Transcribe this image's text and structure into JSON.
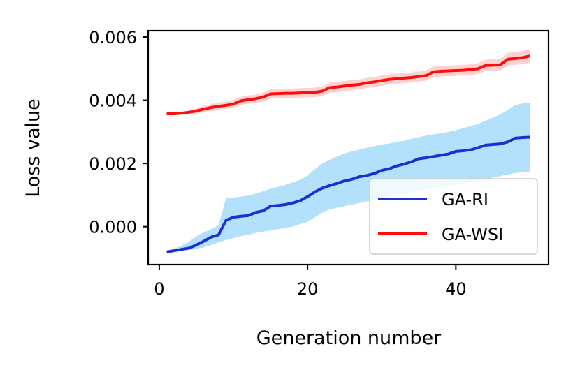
{
  "chart_data": {
    "type": "line",
    "title": "",
    "xlabel": "Generation number",
    "ylabel": "Loss value",
    "xlim": [
      -1.5,
      52.5
    ],
    "ylim": [
      -0.0012,
      0.0062
    ],
    "xticks": [
      0,
      20,
      40
    ],
    "xtick_labels": [
      "0",
      "20",
      "40"
    ],
    "yticks": [
      0.0,
      0.002,
      0.004,
      0.006
    ],
    "ytick_labels": [
      "0.000",
      "0.002",
      "0.004",
      "0.006"
    ],
    "legend_position": "lower-right",
    "x": [
      1,
      2,
      3,
      4,
      5,
      6,
      7,
      8,
      9,
      10,
      11,
      12,
      13,
      14,
      15,
      16,
      17,
      18,
      19,
      20,
      21,
      22,
      23,
      24,
      25,
      26,
      27,
      28,
      29,
      30,
      31,
      32,
      33,
      34,
      35,
      36,
      37,
      38,
      39,
      40,
      41,
      42,
      43,
      44,
      45,
      46,
      47,
      48,
      49,
      50
    ],
    "series": [
      {
        "name": "GA-RI",
        "color": "#1a2fd6",
        "band_color": "#b3e0fa",
        "values": [
          -0.0008,
          -0.00076,
          -0.00072,
          -0.00068,
          -0.00058,
          -0.00046,
          -0.00033,
          -0.00026,
          0.0002,
          0.0003,
          0.00033,
          0.00035,
          0.00045,
          0.0005,
          0.00065,
          0.00067,
          0.0007,
          0.00075,
          0.00082,
          0.00095,
          0.0011,
          0.00122,
          0.0013,
          0.00137,
          0.00145,
          0.0015,
          0.00158,
          0.00162,
          0.00168,
          0.00178,
          0.00183,
          0.00192,
          0.00198,
          0.00205,
          0.00215,
          0.00218,
          0.00222,
          0.00226,
          0.0023,
          0.00238,
          0.0024,
          0.00243,
          0.0025,
          0.00258,
          0.0026,
          0.00262,
          0.00268,
          0.0028,
          0.00282,
          0.00283
        ],
        "lower": [
          -0.0008,
          -0.00078,
          -0.00076,
          -0.00074,
          -0.0007,
          -0.00066,
          -0.00058,
          -0.0005,
          -0.00042,
          -0.00036,
          -0.0003,
          -0.00026,
          -0.0002,
          -0.00016,
          -0.00012,
          -8e-05,
          -4e-05,
          0.0,
          8e-05,
          0.00015,
          0.0003,
          0.00045,
          0.00055,
          0.0006,
          0.00065,
          0.0007,
          0.00075,
          0.0008,
          0.00085,
          0.0009,
          0.00095,
          0.001,
          0.00105,
          0.0011,
          0.00115,
          0.00118,
          0.00122,
          0.00125,
          0.00128,
          0.00132,
          0.00136,
          0.0014,
          0.00145,
          0.0015,
          0.00155,
          0.0016,
          0.00165,
          0.0017,
          0.00172,
          0.00175
        ],
        "upper": [
          -0.0008,
          -0.0007,
          -0.0006,
          -0.00048,
          -0.0003,
          -0.00018,
          -8e-05,
          5e-05,
          0.0009,
          0.00092,
          0.00095,
          0.00098,
          0.00105,
          0.00112,
          0.0012,
          0.00126,
          0.00132,
          0.0014,
          0.00148,
          0.00162,
          0.00182,
          0.002,
          0.00212,
          0.00222,
          0.00232,
          0.00238,
          0.00244,
          0.0025,
          0.00255,
          0.0026,
          0.00263,
          0.00268,
          0.00272,
          0.00278,
          0.00283,
          0.00288,
          0.00292,
          0.00296,
          0.003,
          0.00305,
          0.00312,
          0.00318,
          0.00325,
          0.00335,
          0.00345,
          0.00355,
          0.0037,
          0.00385,
          0.0039,
          0.00392
        ]
      },
      {
        "name": "GA-WSI",
        "color": "#ff0d0d",
        "band_color": "#ffd1d1",
        "values": [
          0.00357,
          0.00357,
          0.00359,
          0.00362,
          0.00366,
          0.00372,
          0.00377,
          0.00381,
          0.00384,
          0.00388,
          0.00398,
          0.00402,
          0.00405,
          0.0041,
          0.0042,
          0.00421,
          0.00422,
          0.00422,
          0.00423,
          0.00424,
          0.00425,
          0.00429,
          0.0044,
          0.00442,
          0.00445,
          0.00448,
          0.0045,
          0.00455,
          0.00458,
          0.00462,
          0.00466,
          0.00468,
          0.0047,
          0.00472,
          0.00475,
          0.00478,
          0.0049,
          0.00492,
          0.00493,
          0.00494,
          0.00495,
          0.00497,
          0.005,
          0.0051,
          0.00511,
          0.00512,
          0.0053,
          0.00532,
          0.00535,
          0.0054
        ],
        "lower": [
          0.00355,
          0.00354,
          0.00355,
          0.00356,
          0.00358,
          0.00362,
          0.00366,
          0.00369,
          0.00372,
          0.00375,
          0.00385,
          0.00389,
          0.00392,
          0.00396,
          0.00405,
          0.00406,
          0.00407,
          0.00407,
          0.00408,
          0.00409,
          0.0041,
          0.00414,
          0.00424,
          0.00426,
          0.00429,
          0.00432,
          0.00434,
          0.00439,
          0.00442,
          0.00446,
          0.0045,
          0.00452,
          0.00454,
          0.00456,
          0.00459,
          0.00462,
          0.00473,
          0.00475,
          0.00476,
          0.00477,
          0.00478,
          0.0048,
          0.00483,
          0.00492,
          0.00493,
          0.00494,
          0.0051,
          0.00512,
          0.00514,
          0.00518
        ],
        "upper": [
          0.00359,
          0.0036,
          0.00363,
          0.00368,
          0.00374,
          0.00382,
          0.00388,
          0.00393,
          0.00396,
          0.00401,
          0.00411,
          0.00415,
          0.00418,
          0.00424,
          0.00435,
          0.00436,
          0.00437,
          0.00437,
          0.00438,
          0.00439,
          0.0044,
          0.00444,
          0.00456,
          0.00458,
          0.00461,
          0.00464,
          0.00466,
          0.00471,
          0.00474,
          0.00478,
          0.00482,
          0.00484,
          0.00486,
          0.00488,
          0.00491,
          0.00494,
          0.00507,
          0.00509,
          0.0051,
          0.00511,
          0.00512,
          0.00514,
          0.00517,
          0.00528,
          0.0053,
          0.00531,
          0.0055,
          0.00552,
          0.00556,
          0.00562
        ]
      }
    ]
  }
}
